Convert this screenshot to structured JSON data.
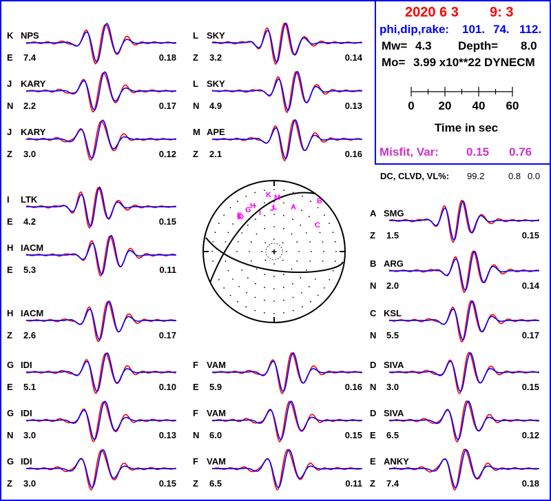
{
  "header": {
    "date": "2020  6  3",
    "time": "9: 3",
    "mechanism_label": "phi,dip,rake:",
    "phi": "101.",
    "dip": "74.",
    "rake": "112.",
    "mw_label": "Mw=",
    "mw": "4.3",
    "depth_label": "Depth=",
    "depth": "8.0",
    "mo_label": "Mo=",
    "mo": "3.99 x10**22 DYNECM",
    "time_ticks": [
      "0",
      "20",
      "40",
      "60"
    ],
    "time_axis_label": "Time  in sec",
    "misfit_label": "Misfit, Var:",
    "misfit": "0.15",
    "var": "0.76",
    "dc_label": "DC, CLVD, VL%:",
    "dc": "99.2",
    "clvd": "0.8",
    "vl": "0.0"
  },
  "colors": {
    "frame": "#0000ff",
    "observed": "#ff0000",
    "synthetic": "#0000ff",
    "date": "#ff0000",
    "mechanism": "#0000ff",
    "misfit": "#cc33cc",
    "station_marker": "#ff00ff"
  },
  "traces": [
    {
      "letter": "K",
      "station": "NPS",
      "comp": "E",
      "dist": "7.4",
      "amp": "0.18",
      "seed": 1
    },
    {
      "letter": "J",
      "station": "KARY",
      "comp": "N",
      "dist": "2.2",
      "amp": "0.17",
      "seed": 2
    },
    {
      "letter": "J",
      "station": "KARY",
      "comp": "Z",
      "dist": "3.0",
      "amp": "0.12",
      "seed": 3
    },
    {
      "letter": "I",
      "station": "LTK",
      "comp": "E",
      "dist": "4.2",
      "amp": "0.15",
      "seed": 4
    },
    {
      "letter": "H",
      "station": "IACM",
      "comp": "E",
      "dist": "5.3",
      "amp": "0.11",
      "seed": 5
    },
    {
      "letter": "H",
      "station": "IACM",
      "comp": "Z",
      "dist": "2.6",
      "amp": "0.17",
      "seed": 6
    },
    {
      "letter": "G",
      "station": "IDI",
      "comp": "E",
      "dist": "5.1",
      "amp": "0.10",
      "seed": 7
    },
    {
      "letter": "G",
      "station": "IDI",
      "comp": "N",
      "dist": "3.0",
      "amp": "0.13",
      "seed": 8
    },
    {
      "letter": "G",
      "station": "IDI",
      "comp": "Z",
      "dist": "3.0",
      "amp": "0.15",
      "seed": 9
    },
    {
      "letter": "L",
      "station": "SKY",
      "comp": "Z",
      "dist": "3.2",
      "amp": "0.14",
      "seed": 10
    },
    {
      "letter": "L",
      "station": "SKY",
      "comp": "N",
      "dist": "4.9",
      "amp": "0.13",
      "seed": 11
    },
    {
      "letter": "M",
      "station": "APE",
      "comp": "Z",
      "dist": "2.1",
      "amp": "0.16",
      "seed": 12
    },
    {
      "letter": "F",
      "station": "VAM",
      "comp": "E",
      "dist": "5.9",
      "amp": "0.16",
      "seed": 13
    },
    {
      "letter": "F",
      "station": "VAM",
      "comp": "N",
      "dist": "6.0",
      "amp": "0.15",
      "seed": 14
    },
    {
      "letter": "F",
      "station": "VAM",
      "comp": "Z",
      "dist": "6.5",
      "amp": "0.11",
      "seed": 15
    },
    {
      "letter": "A",
      "station": "SMG",
      "comp": "Z",
      "dist": "1.5",
      "amp": "0.15",
      "seed": 16
    },
    {
      "letter": "B",
      "station": "ARG",
      "comp": "N",
      "dist": "2.0",
      "amp": "0.14",
      "seed": 17
    },
    {
      "letter": "C",
      "station": "KSL",
      "comp": "N",
      "dist": "5.5",
      "amp": "0.17",
      "seed": 18
    },
    {
      "letter": "D",
      "station": "SIVA",
      "comp": "N",
      "dist": "3.0",
      "amp": "0.15",
      "seed": 19
    },
    {
      "letter": "D",
      "station": "SIVA",
      "comp": "E",
      "dist": "6.5",
      "amp": "0.12",
      "seed": 20
    },
    {
      "letter": "E",
      "station": "ANKY",
      "comp": "Z",
      "dist": "7.4",
      "amp": "0.18",
      "seed": 21
    }
  ],
  "focal_sphere": {
    "center_symbol": "+",
    "station_letters": [
      "K",
      "M",
      "H",
      "J",
      "I",
      "L",
      "A",
      "B",
      "C",
      "E"
    ]
  }
}
